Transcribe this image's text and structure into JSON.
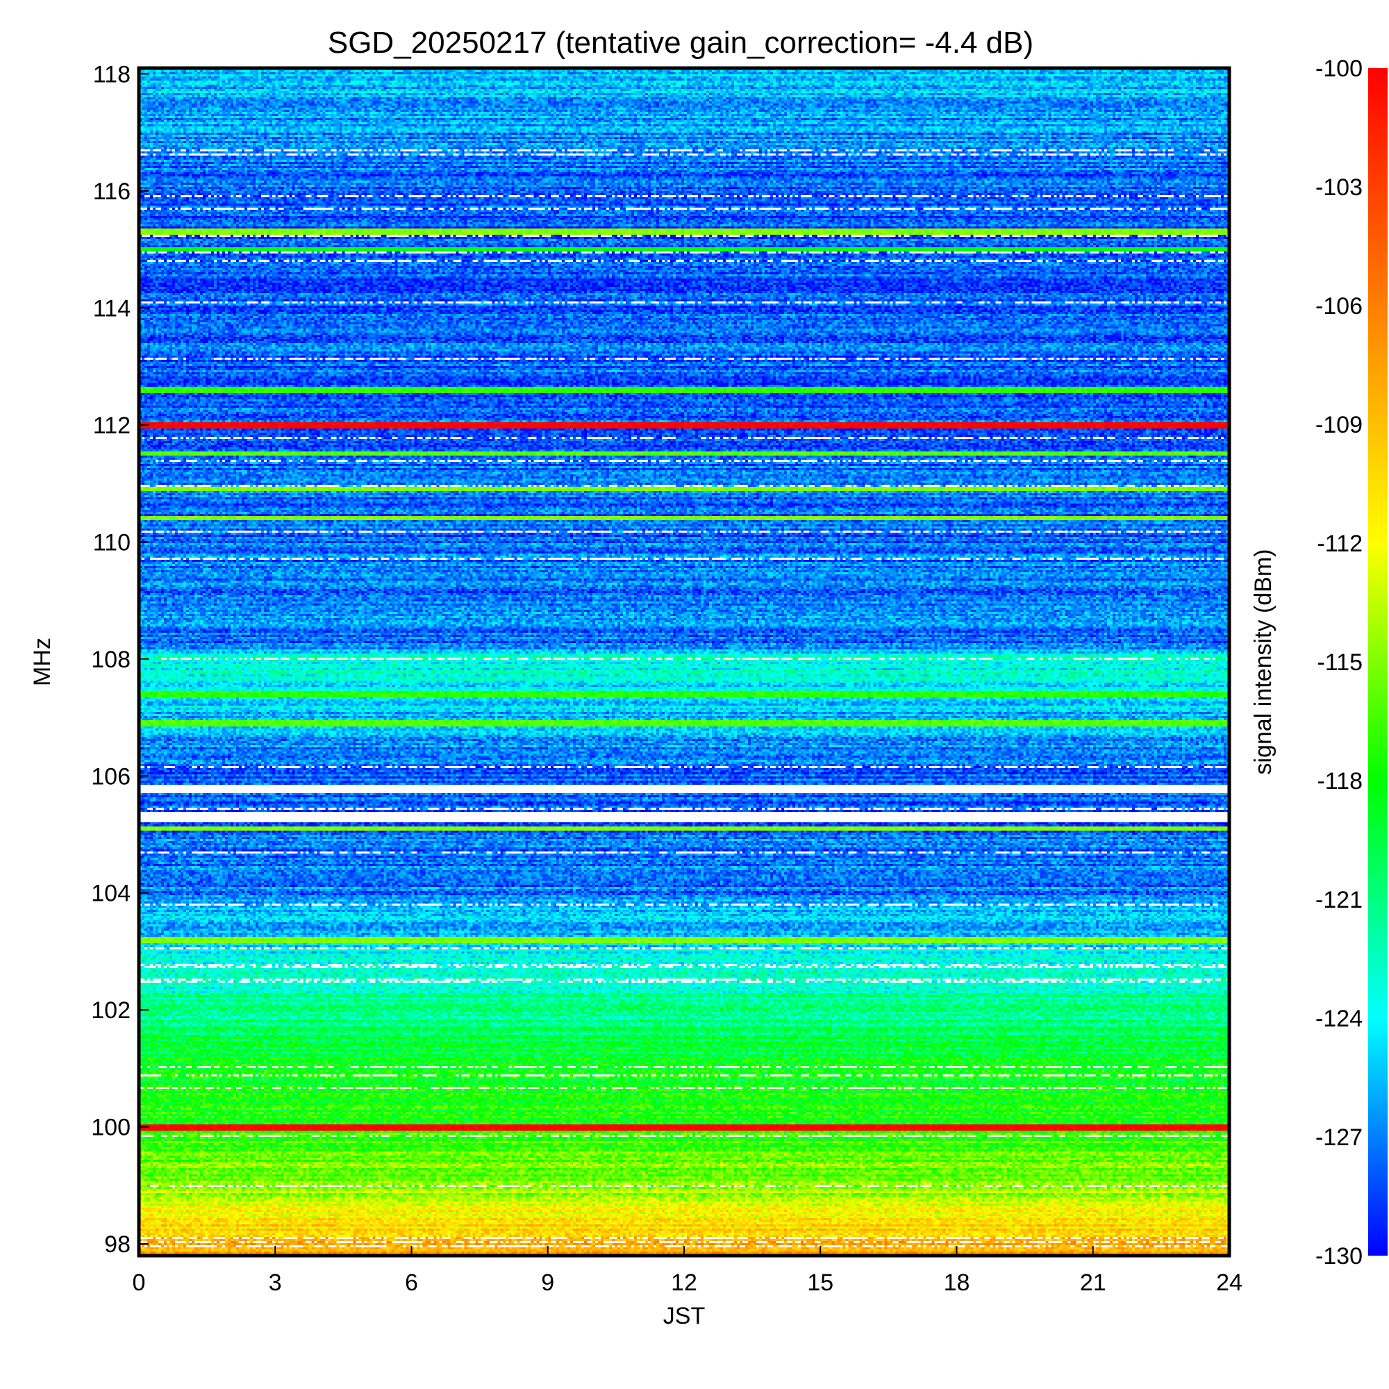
{
  "chart_data": {
    "type": "heatmap",
    "title": "SGD_20250217 (tentative gain_correction= -4.4 dB)",
    "xlabel": "JST",
    "ylabel": "MHz",
    "colorbar_label": "signal intensity (dBm)",
    "xlim": [
      0,
      24
    ],
    "ylim": [
      97.8,
      118.1
    ],
    "x_ticks": [
      "0",
      "3",
      "6",
      "9",
      "12",
      "15",
      "18",
      "21",
      "24"
    ],
    "y_ticks": [
      "98",
      "100",
      "102",
      "104",
      "106",
      "108",
      "110",
      "112",
      "114",
      "116",
      "118"
    ],
    "color_range": [
      -130,
      -100
    ],
    "colorbar_ticks": [
      "-100",
      "-103",
      "-106",
      "-109",
      "-112",
      "-115",
      "-118",
      "-121",
      "-124",
      "-127",
      "-130"
    ],
    "colormap_stops": [
      "#0000ff",
      "#00ffff",
      "#00ff00",
      "#ffff00",
      "#ff7f00",
      "#ff0000"
    ],
    "missing_color": "#ffffff",
    "background_level_profile": [
      {
        "mhz": 97.8,
        "dbm": -107
      },
      {
        "mhz": 98.4,
        "dbm": -111
      },
      {
        "mhz": 99.0,
        "dbm": -115
      },
      {
        "mhz": 100.5,
        "dbm": -118
      },
      {
        "mhz": 102.0,
        "dbm": -121
      },
      {
        "mhz": 103.0,
        "dbm": -124
      },
      {
        "mhz": 104.0,
        "dbm": -127
      },
      {
        "mhz": 106.0,
        "dbm": -128
      },
      {
        "mhz": 108.0,
        "dbm": -123
      },
      {
        "mhz": 108.2,
        "dbm": -127
      },
      {
        "mhz": 112.0,
        "dbm": -128
      },
      {
        "mhz": 116.0,
        "dbm": -128
      },
      {
        "mhz": 118.1,
        "dbm": -125
      }
    ],
    "strong_bands": [
      {
        "mhz": 100.0,
        "dbm": -100,
        "width_mhz": 0.12
      },
      {
        "mhz": 103.2,
        "dbm": -115,
        "width_mhz": 0.12
      },
      {
        "mhz": 105.1,
        "dbm": -115,
        "width_mhz": 0.1
      },
      {
        "mhz": 106.9,
        "dbm": -116,
        "width_mhz": 0.1
      },
      {
        "mhz": 107.4,
        "dbm": -117,
        "width_mhz": 0.08
      },
      {
        "mhz": 110.4,
        "dbm": -115,
        "width_mhz": 0.08
      },
      {
        "mhz": 110.9,
        "dbm": -115,
        "width_mhz": 0.06
      },
      {
        "mhz": 111.5,
        "dbm": -116,
        "width_mhz": 0.06
      },
      {
        "mhz": 112.0,
        "dbm": -100,
        "width_mhz": 0.12
      },
      {
        "mhz": 112.6,
        "dbm": -117,
        "width_mhz": 0.08
      },
      {
        "mhz": 115.3,
        "dbm": -115,
        "width_mhz": 0.08
      },
      {
        "mhz": 115.0,
        "dbm": -118,
        "width_mhz": 0.04
      }
    ],
    "saturated_regions": [
      {
        "mhz_min": 105.2,
        "mhz_max": 105.4
      },
      {
        "mhz_min": 105.7,
        "mhz_max": 105.85
      }
    ]
  }
}
